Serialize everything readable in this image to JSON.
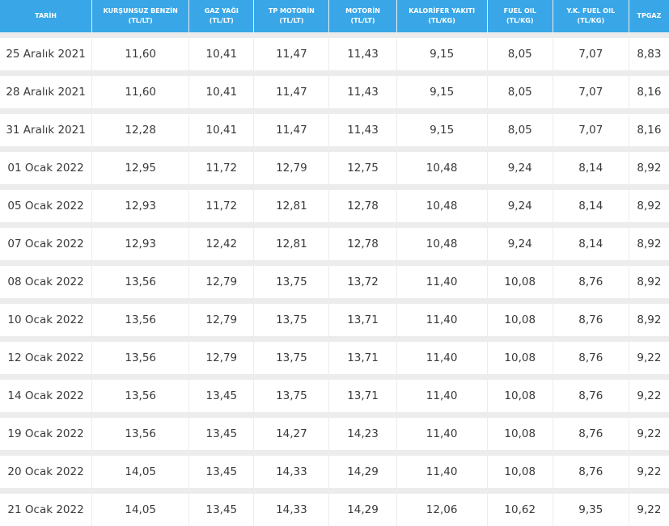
{
  "columns": [
    {
      "title": "TARİH",
      "unit": ""
    },
    {
      "title": "KURŞUNSUZ BENZİN",
      "unit": "(TL/LT)"
    },
    {
      "title": "GAZ YAĞI",
      "unit": "(TL/LT)"
    },
    {
      "title": "TP MOTORİN",
      "unit": "(TL/LT)"
    },
    {
      "title": "MOTORİN",
      "unit": "(TL/LT)"
    },
    {
      "title": "KALORİFER YAKITI",
      "unit": "(TL/KG)"
    },
    {
      "title": "FUEL OIL",
      "unit": "(TL/KG)"
    },
    {
      "title": "Y.K. FUEL OIL",
      "unit": "(TL/KG)"
    },
    {
      "title": "TPGAZ",
      "unit": ""
    }
  ],
  "rows": [
    [
      "25 Aralık 2021",
      "11,60",
      "10,41",
      "11,47",
      "11,43",
      "9,15",
      "8,05",
      "7,07",
      "8,83"
    ],
    [
      "28 Aralık 2021",
      "11,60",
      "10,41",
      "11,47",
      "11,43",
      "9,15",
      "8,05",
      "7,07",
      "8,16"
    ],
    [
      "31 Aralık 2021",
      "12,28",
      "10,41",
      "11,47",
      "11,43",
      "9,15",
      "8,05",
      "7,07",
      "8,16"
    ],
    [
      "01 Ocak 2022",
      "12,95",
      "11,72",
      "12,79",
      "12,75",
      "10,48",
      "9,24",
      "8,14",
      "8,92"
    ],
    [
      "05 Ocak 2022",
      "12,93",
      "11,72",
      "12,81",
      "12,78",
      "10,48",
      "9,24",
      "8,14",
      "8,92"
    ],
    [
      "07 Ocak 2022",
      "12,93",
      "12,42",
      "12,81",
      "12,78",
      "10,48",
      "9,24",
      "8,14",
      "8,92"
    ],
    [
      "08 Ocak 2022",
      "13,56",
      "12,79",
      "13,75",
      "13,72",
      "11,40",
      "10,08",
      "8,76",
      "8,92"
    ],
    [
      "10 Ocak 2022",
      "13,56",
      "12,79",
      "13,75",
      "13,71",
      "11,40",
      "10,08",
      "8,76",
      "8,92"
    ],
    [
      "12 Ocak 2022",
      "13,56",
      "12,79",
      "13,75",
      "13,71",
      "11,40",
      "10,08",
      "8,76",
      "9,22"
    ],
    [
      "14 Ocak 2022",
      "13,56",
      "13,45",
      "13,75",
      "13,71",
      "11,40",
      "10,08",
      "8,76",
      "9,22"
    ],
    [
      "19 Ocak 2022",
      "13,56",
      "13,45",
      "14,27",
      "14,23",
      "11,40",
      "10,08",
      "8,76",
      "9,22"
    ],
    [
      "20 Ocak 2022",
      "14,05",
      "13,45",
      "14,33",
      "14,29",
      "11,40",
      "10,08",
      "8,76",
      "9,22"
    ],
    [
      "21 Ocak 2022",
      "14,05",
      "13,45",
      "14,33",
      "14,29",
      "12,06",
      "10,62",
      "9,35",
      "9,22"
    ]
  ]
}
